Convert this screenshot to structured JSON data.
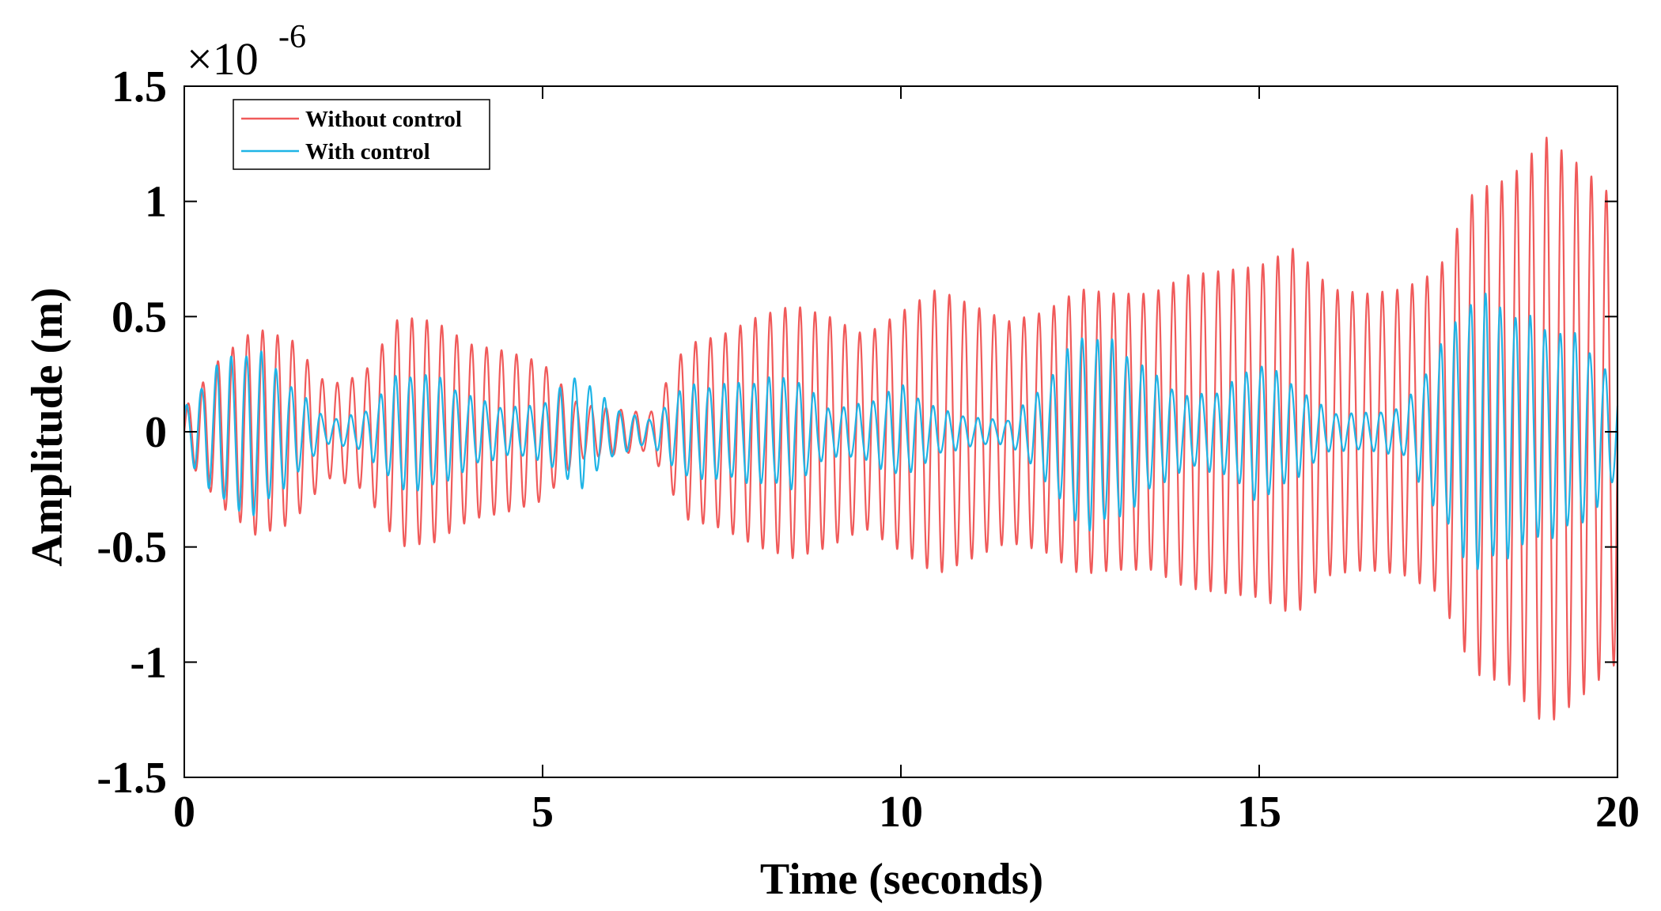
{
  "chart_data": {
    "type": "line",
    "title": "",
    "xlabel": "Time (seconds)",
    "ylabel": "Amplitude (m)",
    "xlim": [
      0,
      20
    ],
    "ylim": [
      -1.5,
      1.5
    ],
    "xticks": [
      0,
      5,
      10,
      15,
      20
    ],
    "xtick_labels": [
      "0",
      "5",
      "10",
      "15",
      "20"
    ],
    "yticks": [
      1.5,
      1,
      0.5,
      0,
      -0.5,
      -1,
      -1.5
    ],
    "ytick_labels": [
      "1.5",
      "1",
      "0.5",
      "0",
      "-0.5",
      "-1",
      "-1.5"
    ],
    "y_exponent": {
      "base": "×10",
      "power": "-6"
    },
    "grid": false,
    "legend_position": "top-left",
    "oscillation_frequency_hz": 4.8,
    "series": [
      {
        "name": "Without control",
        "color": "#f05a5a",
        "envelope_time": [
          0,
          0.5,
          1.0,
          1.5,
          2.0,
          2.5,
          3.0,
          3.5,
          4.0,
          4.5,
          5.0,
          5.5,
          6.0,
          6.5,
          7.0,
          7.5,
          8.0,
          8.5,
          9.0,
          9.5,
          10.0,
          10.5,
          11.0,
          11.5,
          12.0,
          12.5,
          13.0,
          13.5,
          14.0,
          14.5,
          15.0,
          15.5,
          16.0,
          16.5,
          17.0,
          17.5,
          18.0,
          18.5,
          19.0,
          19.5,
          20.0
        ],
        "envelope_amplitude": [
          0.1,
          0.32,
          0.45,
          0.4,
          0.2,
          0.25,
          0.5,
          0.48,
          0.38,
          0.35,
          0.3,
          0.12,
          0.1,
          0.08,
          0.38,
          0.42,
          0.5,
          0.55,
          0.5,
          0.42,
          0.52,
          0.62,
          0.55,
          0.48,
          0.52,
          0.62,
          0.6,
          0.6,
          0.68,
          0.7,
          0.72,
          0.8,
          0.62,
          0.6,
          0.62,
          0.7,
          1.05,
          1.1,
          1.28,
          1.15,
          1.0
        ]
      },
      {
        "name": "With control",
        "color": "#1eb4e6",
        "envelope_time": [
          0,
          0.5,
          1.0,
          1.5,
          2.0,
          2.5,
          3.0,
          3.5,
          4.0,
          4.5,
          5.0,
          5.5,
          6.0,
          6.5,
          7.0,
          7.5,
          8.0,
          8.5,
          9.0,
          9.5,
          10.0,
          10.5,
          11.0,
          11.5,
          12.0,
          12.5,
          13.0,
          13.5,
          14.0,
          14.5,
          15.0,
          15.5,
          16.0,
          16.5,
          17.0,
          17.5,
          18.0,
          18.5,
          19.0,
          19.5,
          20.0
        ],
        "envelope_amplitude": [
          0.1,
          0.3,
          0.36,
          0.2,
          0.05,
          0.08,
          0.25,
          0.24,
          0.15,
          0.1,
          0.12,
          0.25,
          0.1,
          0.05,
          0.2,
          0.2,
          0.22,
          0.24,
          0.1,
          0.12,
          0.2,
          0.1,
          0.06,
          0.05,
          0.2,
          0.42,
          0.38,
          0.25,
          0.15,
          0.18,
          0.3,
          0.2,
          0.08,
          0.08,
          0.1,
          0.35,
          0.6,
          0.52,
          0.45,
          0.4,
          0.2
        ]
      }
    ]
  }
}
